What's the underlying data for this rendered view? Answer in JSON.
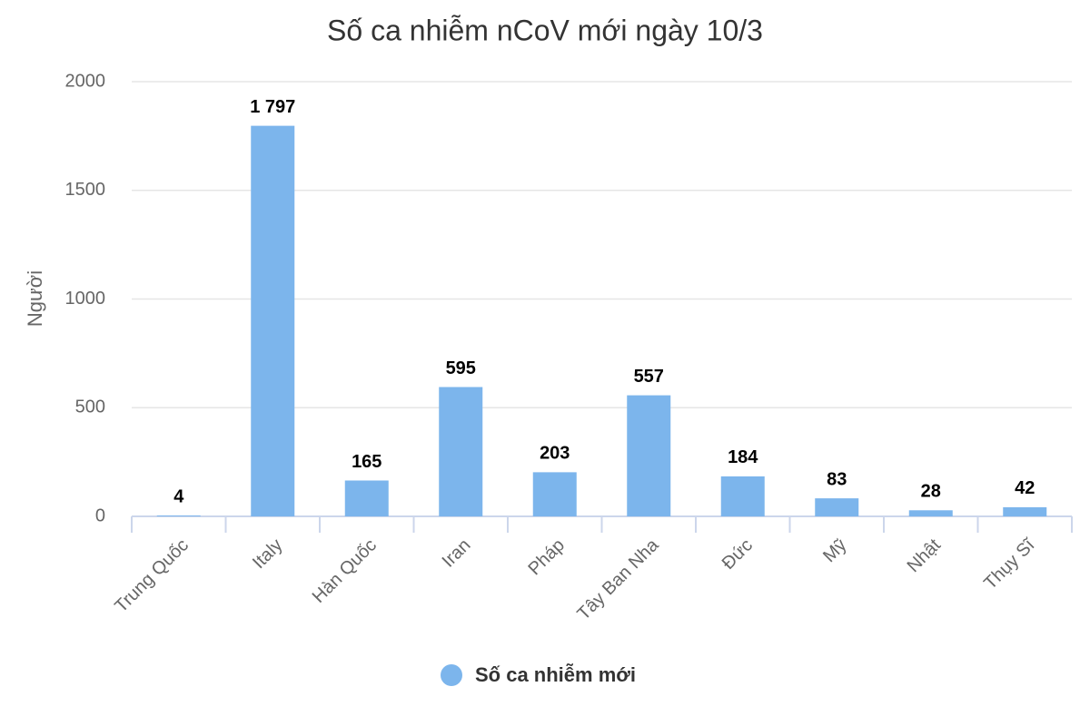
{
  "chart_data": {
    "type": "bar",
    "title": "Số ca nhiễm nCoV mới ngày 10/3",
    "y_label": "Người",
    "categories": [
      "Trung Quốc",
      "Italy",
      "Hàn Quốc",
      "Iran",
      "Pháp",
      "Tây Ban Nha",
      "Đức",
      "Mỹ",
      "Nhật",
      "Thụy Sĩ"
    ],
    "series": [
      {
        "name": "Số ca nhiễm mới",
        "color": "#7cb5ec",
        "values": [
          4,
          1797,
          165,
          595,
          203,
          557,
          184,
          83,
          28,
          42
        ],
        "value_labels": [
          "4",
          "1 797",
          "165",
          "595",
          "203",
          "557",
          "184",
          "83",
          "28",
          "42"
        ]
      }
    ],
    "ylim": [
      0,
      2000
    ],
    "yticks": [
      0,
      500,
      1000,
      1500,
      2000
    ],
    "grid": true,
    "legend": "bottom"
  }
}
